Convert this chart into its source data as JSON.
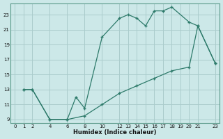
{
  "xlabel": "Humidex (Indice chaleur)",
  "bg_color": "#cce8e8",
  "grid_color": "#aacccc",
  "line_color": "#2d7a6a",
  "line1_x": [
    1,
    2,
    4,
    6,
    7,
    8,
    10,
    12,
    13,
    14,
    15,
    16,
    17,
    18,
    20,
    21,
    23
  ],
  "line1_y": [
    13,
    13,
    9,
    9,
    12,
    10.5,
    20,
    22.5,
    23,
    22.5,
    21.5,
    23.5,
    23.5,
    24,
    22,
    21.5,
    16.5
  ],
  "line2_x": [
    1,
    2,
    4,
    6,
    8,
    10,
    12,
    14,
    16,
    18,
    20,
    21,
    23
  ],
  "line2_y": [
    13,
    13,
    9,
    9,
    9.5,
    11,
    12.5,
    13.5,
    14.5,
    15.5,
    16,
    21.5,
    16.5
  ],
  "xlim": [
    -0.5,
    23.5
  ],
  "ylim": [
    8.5,
    24.5
  ],
  "xticks": [
    0,
    1,
    2,
    4,
    6,
    8,
    10,
    12,
    13,
    14,
    15,
    16,
    17,
    18,
    19,
    20,
    21,
    23
  ],
  "yticks": [
    9,
    11,
    13,
    15,
    17,
    19,
    21,
    23
  ]
}
